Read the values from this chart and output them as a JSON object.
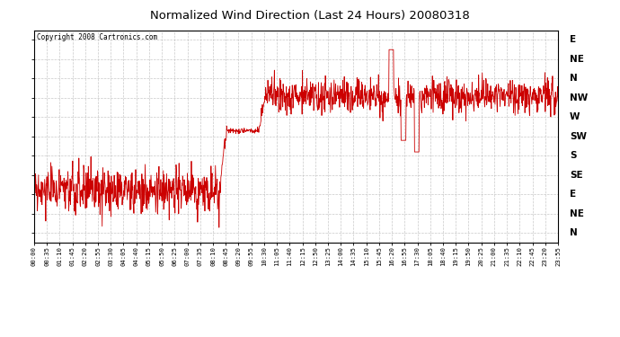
{
  "title": "Normalized Wind Direction (Last 24 Hours) 20080318",
  "copyright": "Copyright 2008 Cartronics.com",
  "background_color": "#ffffff",
  "line_color": "#cc0000",
  "grid_color": "#bbbbbb",
  "ytick_labels": [
    "E",
    "NE",
    "N",
    "NW",
    "W",
    "SW",
    "S",
    "SE",
    "E",
    "NE",
    "N"
  ],
  "ytick_values": [
    11,
    10,
    9,
    8,
    7,
    6,
    5,
    4,
    3,
    2,
    1
  ],
  "xtick_labels": [
    "00:00",
    "00:35",
    "01:10",
    "01:45",
    "02:20",
    "02:55",
    "03:30",
    "04:05",
    "04:40",
    "05:15",
    "05:50",
    "06:25",
    "07:00",
    "07:35",
    "08:10",
    "08:45",
    "09:20",
    "09:55",
    "10:30",
    "11:05",
    "11:40",
    "12:15",
    "12:50",
    "13:25",
    "14:00",
    "14:35",
    "15:10",
    "15:45",
    "16:20",
    "16:55",
    "17:30",
    "18:05",
    "18:40",
    "19:15",
    "19:50",
    "20:25",
    "21:00",
    "21:35",
    "22:10",
    "22:45",
    "23:20",
    "23:55"
  ],
  "figwidth": 6.9,
  "figheight": 3.75,
  "dpi": 100
}
